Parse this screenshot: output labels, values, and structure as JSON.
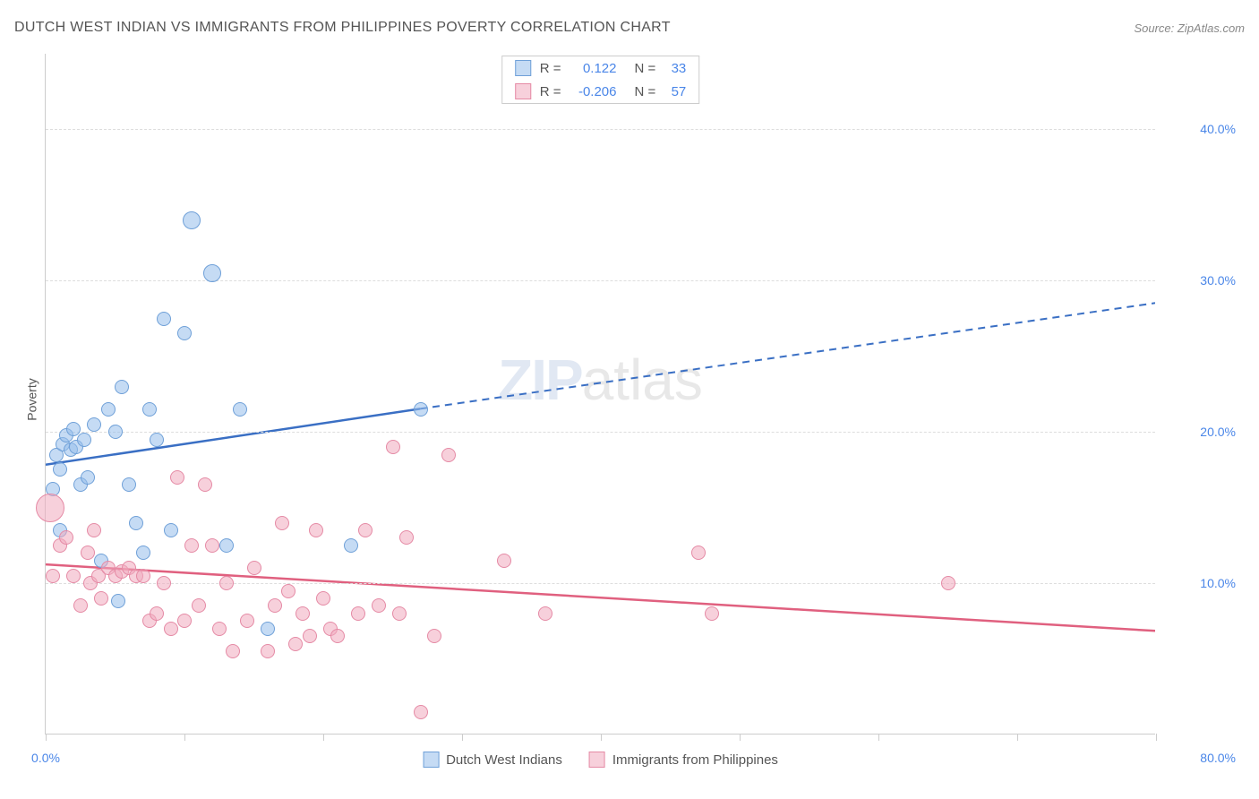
{
  "header": {
    "title": "DUTCH WEST INDIAN VS IMMIGRANTS FROM PHILIPPINES POVERTY CORRELATION CHART",
    "source": "Source: ZipAtlas.com"
  },
  "watermark": {
    "zip": "ZIP",
    "atlas": "atlas"
  },
  "chart": {
    "type": "scatter",
    "y_label": "Poverty",
    "xlim": [
      0,
      80
    ],
    "ylim": [
      0,
      45
    ],
    "y_ticks": [
      10,
      20,
      30,
      40
    ],
    "y_tick_labels": [
      "10.0%",
      "20.0%",
      "30.0%",
      "40.0%"
    ],
    "x_ticks": [
      0,
      10,
      20,
      30,
      40,
      50,
      60,
      70,
      80
    ],
    "x_start_label": "0.0%",
    "x_end_label": "80.0%",
    "grid_color": "#dddddd",
    "axis_color": "#cccccc",
    "tick_label_color": "#4a86e8",
    "background_color": "#ffffff",
    "series": [
      {
        "name": "Dutch West Indians",
        "fill": "rgba(150,190,235,0.55)",
        "stroke": "#6fa0d8",
        "trend_color": "#3a6fc4",
        "trend_start_y": 17.8,
        "trend_solid_end_x": 27,
        "trend_solid_end_y": 21.5,
        "trend_dash_end_x": 80,
        "trend_dash_end_y": 28.5,
        "R": "0.122",
        "N": "33",
        "points": [
          {
            "x": 0.5,
            "y": 16.2,
            "r": 8
          },
          {
            "x": 0.8,
            "y": 18.5,
            "r": 8
          },
          {
            "x": 1.0,
            "y": 17.5,
            "r": 8
          },
          {
            "x": 1.2,
            "y": 19.2,
            "r": 8
          },
          {
            "x": 1.5,
            "y": 19.8,
            "r": 8
          },
          {
            "x": 1.8,
            "y": 18.8,
            "r": 8
          },
          {
            "x": 2.0,
            "y": 20.2,
            "r": 8
          },
          {
            "x": 2.2,
            "y": 19.0,
            "r": 8
          },
          {
            "x": 2.5,
            "y": 16.5,
            "r": 8
          },
          {
            "x": 2.8,
            "y": 19.5,
            "r": 8
          },
          {
            "x": 3.0,
            "y": 17.0,
            "r": 8
          },
          {
            "x": 1.0,
            "y": 13.5,
            "r": 8
          },
          {
            "x": 3.5,
            "y": 20.5,
            "r": 8
          },
          {
            "x": 4.0,
            "y": 11.5,
            "r": 8
          },
          {
            "x": 4.5,
            "y": 21.5,
            "r": 8
          },
          {
            "x": 5.0,
            "y": 20.0,
            "r": 8
          },
          {
            "x": 5.2,
            "y": 8.8,
            "r": 8
          },
          {
            "x": 5.5,
            "y": 23.0,
            "r": 8
          },
          {
            "x": 6.0,
            "y": 16.5,
            "r": 8
          },
          {
            "x": 6.5,
            "y": 14.0,
            "r": 8
          },
          {
            "x": 7.0,
            "y": 12.0,
            "r": 8
          },
          {
            "x": 7.5,
            "y": 21.5,
            "r": 8
          },
          {
            "x": 8.0,
            "y": 19.5,
            "r": 8
          },
          {
            "x": 8.5,
            "y": 27.5,
            "r": 8
          },
          {
            "x": 9.0,
            "y": 13.5,
            "r": 8
          },
          {
            "x": 10.0,
            "y": 26.5,
            "r": 8
          },
          {
            "x": 10.5,
            "y": 34.0,
            "r": 10
          },
          {
            "x": 12.0,
            "y": 30.5,
            "r": 10
          },
          {
            "x": 13.0,
            "y": 12.5,
            "r": 8
          },
          {
            "x": 14.0,
            "y": 21.5,
            "r": 8
          },
          {
            "x": 16.0,
            "y": 7.0,
            "r": 8
          },
          {
            "x": 22.0,
            "y": 12.5,
            "r": 8
          },
          {
            "x": 27.0,
            "y": 21.5,
            "r": 8
          }
        ]
      },
      {
        "name": "Immigrants from Philippines",
        "fill": "rgba(240,170,190,0.55)",
        "stroke": "#e58aa5",
        "trend_color": "#e0607f",
        "trend_start_y": 11.2,
        "trend_end_x": 80,
        "trend_end_y": 6.8,
        "R": "-0.206",
        "N": "57",
        "points": [
          {
            "x": 0.3,
            "y": 15.0,
            "r": 16
          },
          {
            "x": 0.5,
            "y": 10.5,
            "r": 8
          },
          {
            "x": 1.0,
            "y": 12.5,
            "r": 8
          },
          {
            "x": 1.5,
            "y": 13.0,
            "r": 8
          },
          {
            "x": 2.0,
            "y": 10.5,
            "r": 8
          },
          {
            "x": 2.5,
            "y": 8.5,
            "r": 8
          },
          {
            "x": 3.0,
            "y": 12.0,
            "r": 8
          },
          {
            "x": 3.2,
            "y": 10.0,
            "r": 8
          },
          {
            "x": 3.5,
            "y": 13.5,
            "r": 8
          },
          {
            "x": 3.8,
            "y": 10.5,
            "r": 8
          },
          {
            "x": 4.0,
            "y": 9.0,
            "r": 8
          },
          {
            "x": 4.5,
            "y": 11.0,
            "r": 8
          },
          {
            "x": 5.0,
            "y": 10.5,
            "r": 8
          },
          {
            "x": 5.5,
            "y": 10.8,
            "r": 8
          },
          {
            "x": 6.0,
            "y": 11.0,
            "r": 8
          },
          {
            "x": 6.5,
            "y": 10.5,
            "r": 8
          },
          {
            "x": 7.0,
            "y": 10.5,
            "r": 8
          },
          {
            "x": 7.5,
            "y": 7.5,
            "r": 8
          },
          {
            "x": 8.0,
            "y": 8.0,
            "r": 8
          },
          {
            "x": 8.5,
            "y": 10.0,
            "r": 8
          },
          {
            "x": 9.0,
            "y": 7.0,
            "r": 8
          },
          {
            "x": 9.5,
            "y": 17.0,
            "r": 8
          },
          {
            "x": 10.0,
            "y": 7.5,
            "r": 8
          },
          {
            "x": 10.5,
            "y": 12.5,
            "r": 8
          },
          {
            "x": 11.0,
            "y": 8.5,
            "r": 8
          },
          {
            "x": 11.5,
            "y": 16.5,
            "r": 8
          },
          {
            "x": 12.0,
            "y": 12.5,
            "r": 8
          },
          {
            "x": 12.5,
            "y": 7.0,
            "r": 8
          },
          {
            "x": 13.0,
            "y": 10.0,
            "r": 8
          },
          {
            "x": 13.5,
            "y": 5.5,
            "r": 8
          },
          {
            "x": 14.5,
            "y": 7.5,
            "r": 8
          },
          {
            "x": 15.0,
            "y": 11.0,
            "r": 8
          },
          {
            "x": 16.0,
            "y": 5.5,
            "r": 8
          },
          {
            "x": 16.5,
            "y": 8.5,
            "r": 8
          },
          {
            "x": 17.0,
            "y": 14.0,
            "r": 8
          },
          {
            "x": 17.5,
            "y": 9.5,
            "r": 8
          },
          {
            "x": 18.0,
            "y": 6.0,
            "r": 8
          },
          {
            "x": 18.5,
            "y": 8.0,
            "r": 8
          },
          {
            "x": 19.0,
            "y": 6.5,
            "r": 8
          },
          {
            "x": 19.5,
            "y": 13.5,
            "r": 8
          },
          {
            "x": 20.0,
            "y": 9.0,
            "r": 8
          },
          {
            "x": 20.5,
            "y": 7.0,
            "r": 8
          },
          {
            "x": 21.0,
            "y": 6.5,
            "r": 8
          },
          {
            "x": 22.5,
            "y": 8.0,
            "r": 8
          },
          {
            "x": 23.0,
            "y": 13.5,
            "r": 8
          },
          {
            "x": 24.0,
            "y": 8.5,
            "r": 8
          },
          {
            "x": 25.0,
            "y": 19.0,
            "r": 8
          },
          {
            "x": 25.5,
            "y": 8.0,
            "r": 8
          },
          {
            "x": 26.0,
            "y": 13.0,
            "r": 8
          },
          {
            "x": 27.0,
            "y": 1.5,
            "r": 8
          },
          {
            "x": 28.0,
            "y": 6.5,
            "r": 8
          },
          {
            "x": 29.0,
            "y": 18.5,
            "r": 8
          },
          {
            "x": 33.0,
            "y": 11.5,
            "r": 8
          },
          {
            "x": 36.0,
            "y": 8.0,
            "r": 8
          },
          {
            "x": 47.0,
            "y": 12.0,
            "r": 8
          },
          {
            "x": 48.0,
            "y": 8.0,
            "r": 8
          },
          {
            "x": 65.0,
            "y": 10.0,
            "r": 8
          }
        ]
      }
    ],
    "legend_top": {
      "r_label": "R =",
      "n_label": "N ="
    },
    "legend_bottom": [
      {
        "swatch_fill": "rgba(150,190,235,0.55)",
        "swatch_stroke": "#6fa0d8",
        "label": "Dutch West Indians"
      },
      {
        "swatch_fill": "rgba(240,170,190,0.55)",
        "swatch_stroke": "#e58aa5",
        "label": "Immigrants from Philippines"
      }
    ]
  }
}
